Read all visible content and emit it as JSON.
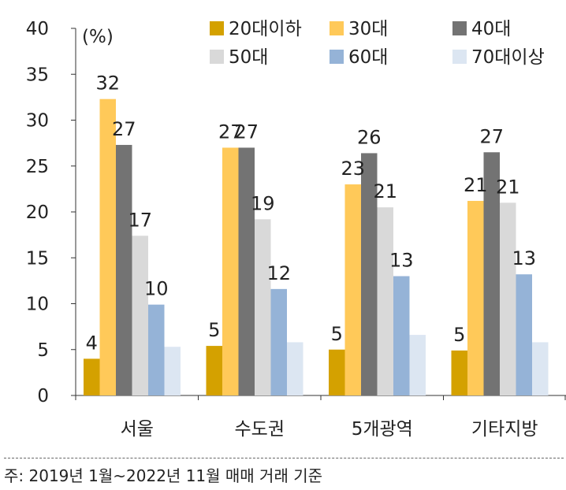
{
  "chart_data": {
    "type": "bar",
    "unit_label": "(%)",
    "categories": [
      "서울",
      "수도권",
      "5개광역",
      "기타지방"
    ],
    "ylim": [
      0,
      40
    ],
    "yticks": [
      0,
      5,
      10,
      15,
      20,
      25,
      30,
      35,
      40
    ],
    "grid": false,
    "legend_position": "top-right",
    "series": [
      {
        "name": "20대이하",
        "color": "#D4A100",
        "values": [
          4,
          5.4,
          5.0,
          4.9
        ],
        "labels": [
          "4",
          "5",
          "5",
          "5"
        ]
      },
      {
        "name": "30대",
        "color": "#FFC959",
        "values": [
          32.3,
          27.0,
          23.0,
          21.2
        ],
        "labels": [
          "32",
          "27",
          "23",
          "21"
        ]
      },
      {
        "name": "40대",
        "color": "#737373",
        "values": [
          27.3,
          27.0,
          26.4,
          26.5
        ],
        "labels": [
          "27",
          "27",
          "26",
          "27"
        ]
      },
      {
        "name": "50대",
        "color": "#D9D9D9",
        "values": [
          17.4,
          19.2,
          20.5,
          21.0
        ],
        "labels": [
          "17",
          "19",
          "21",
          "21"
        ]
      },
      {
        "name": "60대",
        "color": "#95B3D7",
        "values": [
          9.9,
          11.6,
          13.0,
          13.2
        ],
        "labels": [
          "10",
          "12",
          "13",
          "13"
        ]
      },
      {
        "name": "70대이상",
        "color": "#DCE6F2",
        "values": [
          5.3,
          5.8,
          6.6,
          5.8
        ],
        "labels": [
          "",
          "",
          "",
          ""
        ]
      }
    ]
  },
  "note": "주: 2019년 1월~2022년 11월 매매 거래 기준"
}
